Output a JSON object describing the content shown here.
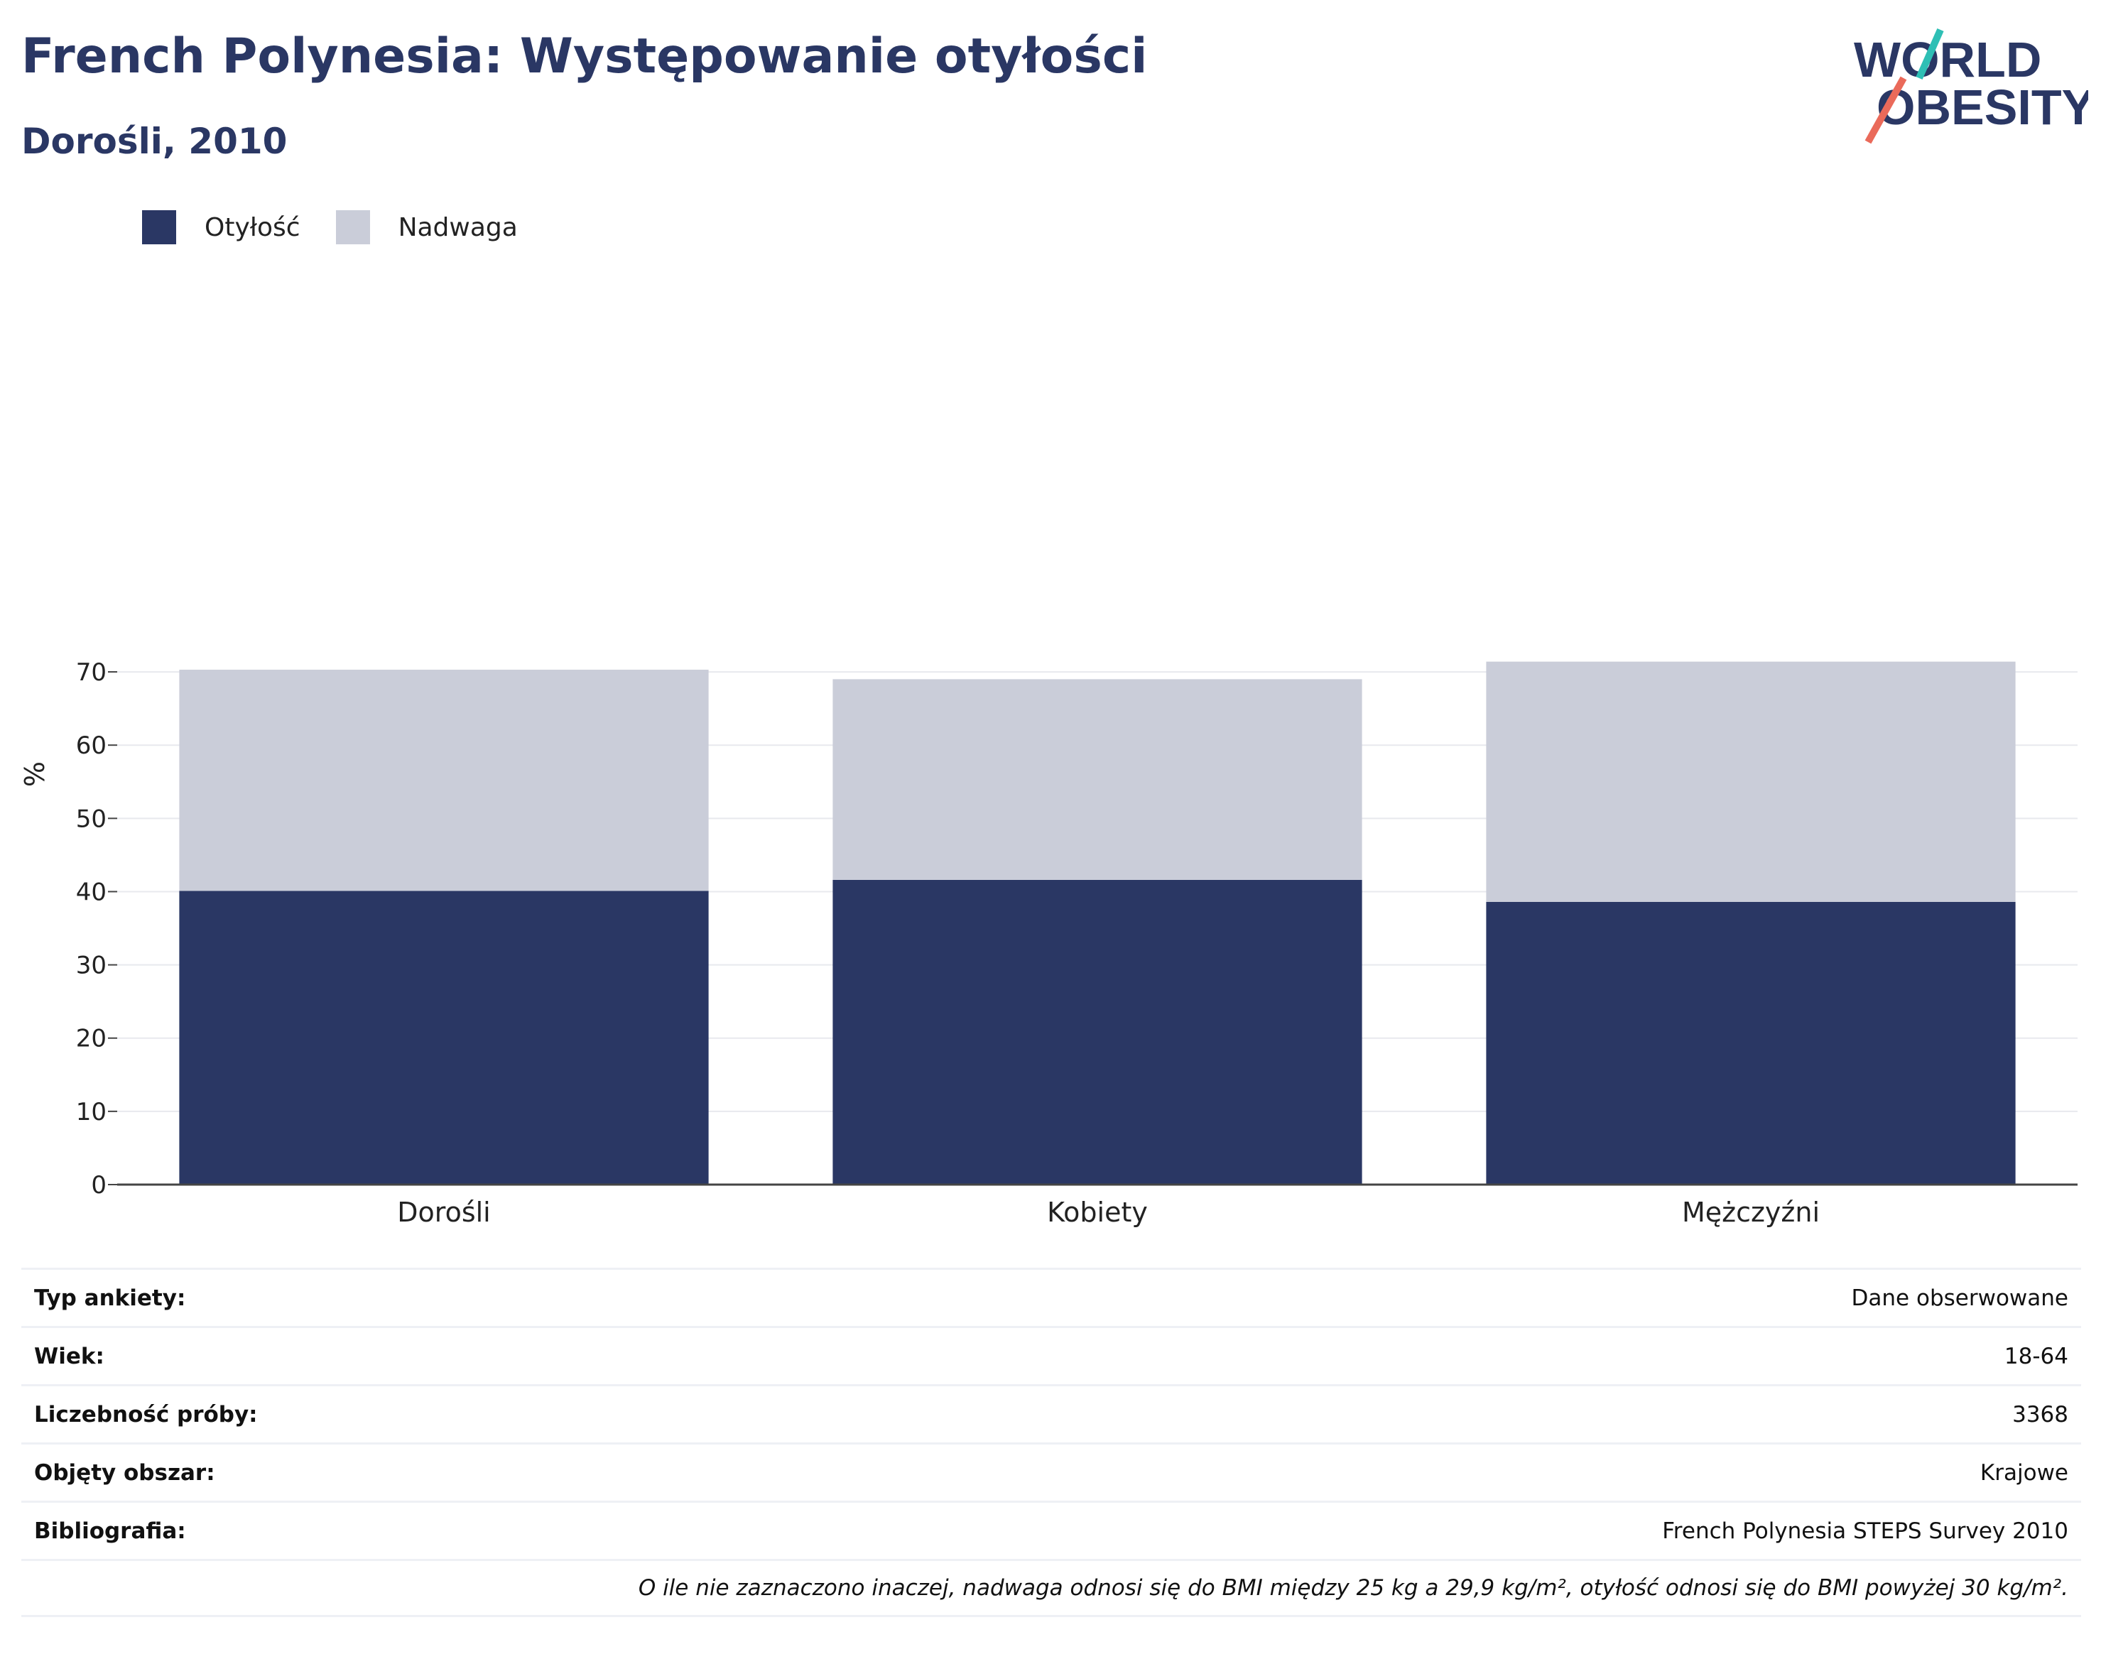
{
  "header": {
    "title": "French Polynesia: Występowanie otyłości",
    "subtitle": "Dorośli, 2010"
  },
  "logo": {
    "line1": "WORLD",
    "line2": "OBESITY",
    "accent_teal": "#2ebfb5",
    "accent_red": "#ea6a5a",
    "text_color": "#2a3764"
  },
  "legend": {
    "items": [
      {
        "label": "Otyłość",
        "color": "#2a3764"
      },
      {
        "label": "Nadwaga",
        "color": "#cacdd9"
      }
    ]
  },
  "chart_data": {
    "type": "bar",
    "stacked": true,
    "categories": [
      "Dorośli",
      "Kobiety",
      "Mężczyźni"
    ],
    "series": [
      {
        "name": "Otyłość",
        "color": "#2a3764",
        "values": [
          40.1,
          41.6,
          38.6
        ]
      },
      {
        "name": "Nadwaga",
        "color": "#cacdd9",
        "values": [
          30.2,
          27.4,
          32.8
        ]
      }
    ],
    "ylabel": "%",
    "ylim": [
      0,
      75
    ],
    "yticks": [
      0,
      10,
      20,
      30,
      40,
      50,
      60,
      70
    ],
    "grid": true,
    "legend_position": "top-left"
  },
  "info": {
    "rows": [
      {
        "key": "Typ ankiety:",
        "value": "Dane obserwowane"
      },
      {
        "key": "Wiek:",
        "value": "18-64"
      },
      {
        "key": "Liczebność próby:",
        "value": "3368"
      },
      {
        "key": "Objęty obszar:",
        "value": "Krajowe"
      },
      {
        "key": "Bibliografia:",
        "value": "French Polynesia STEPS Survey 2010"
      }
    ],
    "note": "O ile nie zaznaczono inaczej, nadwaga odnosi się do BMI między 25 kg a 29,9 kg/m², otyłość odnosi się do BMI powyżej 30 kg/m²."
  }
}
